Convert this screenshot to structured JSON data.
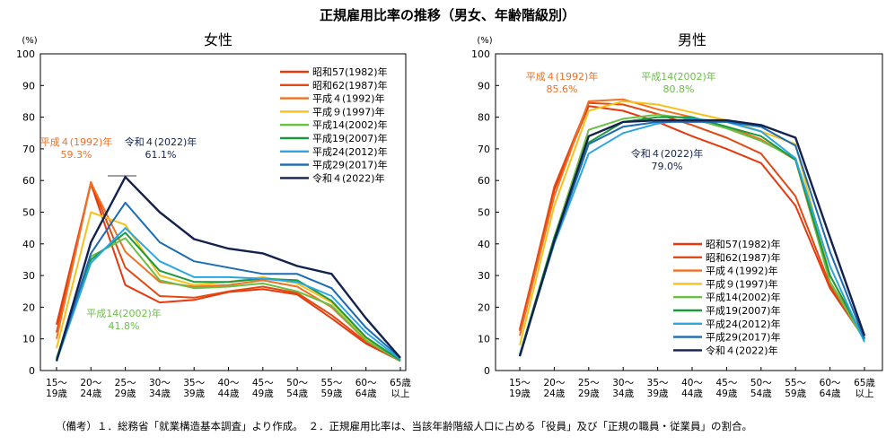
{
  "title": "正規雇用比率の推移（男女、年齢階級別）",
  "footnote": "（備考）１．総務省「就業構造基本調査」より作成。　２．正規雇用比率は、当該年齢階級人口に占める「役員」及び「正規の職員・従業員」の割合。",
  "chart_data": [
    {
      "type": "line",
      "title": "女性",
      "ylabel": "(%)",
      "ylim": [
        0,
        100
      ],
      "yticks": [
        0,
        10,
        20,
        30,
        40,
        50,
        60,
        70,
        80,
        90,
        100
      ],
      "categories": [
        [
          "15～",
          "19歳"
        ],
        [
          "20～",
          "24歳"
        ],
        [
          "25～",
          "29歳"
        ],
        [
          "30～",
          "34歳"
        ],
        [
          "35～",
          "39歳"
        ],
        [
          "40～",
          "44歳"
        ],
        [
          "45～",
          "49歳"
        ],
        [
          "50～",
          "54歳"
        ],
        [
          "55～",
          "59歳"
        ],
        [
          "60～",
          "64歳"
        ],
        [
          "65歳",
          "以上"
        ]
      ],
      "legend_position": "top-right",
      "series": [
        {
          "name": "昭和57(1982)年",
          "color": "#e8380d",
          "values": [
            14.5,
            59.0,
            27.0,
            21.5,
            22.3,
            24.8,
            25.7,
            24.0,
            16.5,
            8.5,
            3.0
          ]
        },
        {
          "name": "昭和62(1987)年",
          "color": "#e24a12",
          "values": [
            12.0,
            59.5,
            32.5,
            23.5,
            23.0,
            25.0,
            26.5,
            24.5,
            17.5,
            9.0,
            3.0
          ]
        },
        {
          "name": "平成４(1992)年",
          "color": "#f07025",
          "values": [
            10.0,
            59.3,
            37.5,
            28.0,
            26.5,
            27.0,
            28.5,
            26.5,
            20.0,
            9.5,
            3.2
          ]
        },
        {
          "name": "平成９(1997)年",
          "color": "#f5c21b",
          "values": [
            7.0,
            50.0,
            46.0,
            30.0,
            27.0,
            28.0,
            29.5,
            27.5,
            21.5,
            10.0,
            3.3
          ]
        },
        {
          "name": "平成14(2002)年",
          "color": "#6abf45",
          "values": [
            4.0,
            36.0,
            41.8,
            28.5,
            26.0,
            26.5,
            27.5,
            25.0,
            20.5,
            9.5,
            3.0
          ]
        },
        {
          "name": "平成19(2007)年",
          "color": "#1a9a3c",
          "values": [
            3.5,
            35.0,
            43.5,
            31.5,
            28.0,
            28.0,
            29.0,
            28.5,
            22.0,
            10.5,
            3.2
          ]
        },
        {
          "name": "平成24(2012)年",
          "color": "#2aa6e0",
          "values": [
            3.0,
            34.0,
            45.0,
            34.5,
            29.5,
            29.5,
            29.0,
            28.0,
            23.5,
            12.0,
            3.5
          ]
        },
        {
          "name": "平成29(2017)年",
          "color": "#1c6bb5",
          "values": [
            3.0,
            37.0,
            53.0,
            40.5,
            34.5,
            32.5,
            30.5,
            30.5,
            26.0,
            13.5,
            4.0
          ]
        },
        {
          "name": "令和４(2022)年",
          "color": "#12224d",
          "values": [
            3.0,
            40.5,
            61.1,
            50.0,
            41.5,
            38.5,
            37.0,
            33.0,
            30.5,
            16.5,
            4.0
          ]
        }
      ],
      "annotations": [
        {
          "label": "平成４(1992)年",
          "value": "59.3%",
          "color": "#f07025"
        },
        {
          "label": "令和４(2022)年",
          "value": "61.1%",
          "color": "#12224d"
        },
        {
          "label": "平成14(2002)年",
          "value": "41.8%",
          "color": "#6abf45"
        }
      ]
    },
    {
      "type": "line",
      "title": "男性",
      "ylabel": "(%)",
      "ylim": [
        0,
        100
      ],
      "yticks": [
        0,
        10,
        20,
        30,
        40,
        50,
        60,
        70,
        80,
        90,
        100
      ],
      "categories": [
        [
          "15～",
          "19歳"
        ],
        [
          "20～",
          "24歳"
        ],
        [
          "25～",
          "29歳"
        ],
        [
          "30～",
          "34歳"
        ],
        [
          "35～",
          "39歳"
        ],
        [
          "40～",
          "44歳"
        ],
        [
          "45～",
          "49歳"
        ],
        [
          "50～",
          "54歳"
        ],
        [
          "55～",
          "59歳"
        ],
        [
          "60～",
          "64歳"
        ],
        [
          "65歳",
          "以上"
        ]
      ],
      "legend_position": "bottom-right",
      "series": [
        {
          "name": "昭和57(1982)年",
          "color": "#e8380d",
          "values": [
            13.0,
            57.0,
            83.5,
            82.0,
            78.5,
            74.0,
            70.0,
            65.5,
            52.0,
            26.0,
            10.0
          ]
        },
        {
          "name": "昭和62(1987)年",
          "color": "#e24a12",
          "values": [
            12.5,
            58.0,
            84.5,
            84.0,
            81.0,
            77.5,
            73.5,
            68.5,
            55.0,
            27.0,
            10.5
          ]
        },
        {
          "name": "平成４(1992)年",
          "color": "#f07025",
          "values": [
            11.0,
            55.0,
            85.0,
            85.6,
            82.5,
            80.0,
            77.0,
            73.0,
            66.5,
            28.0,
            10.5
          ]
        },
        {
          "name": "平成９(1997)年",
          "color": "#f5c21b",
          "values": [
            8.0,
            52.0,
            82.0,
            85.0,
            84.0,
            81.5,
            79.0,
            75.5,
            71.5,
            30.0,
            10.5
          ]
        },
        {
          "name": "平成14(2002)年",
          "color": "#6abf45",
          "values": [
            5.0,
            42.0,
            76.0,
            79.5,
            80.8,
            79.5,
            76.5,
            72.5,
            67.0,
            28.0,
            9.5
          ]
        },
        {
          "name": "平成19(2007)年",
          "color": "#1a9a3c",
          "values": [
            5.0,
            42.0,
            72.0,
            78.5,
            80.0,
            80.0,
            77.0,
            74.0,
            66.5,
            30.0,
            10.0
          ]
        },
        {
          "name": "平成24(2012)年",
          "color": "#2aa6e0",
          "values": [
            5.0,
            40.0,
            68.5,
            75.0,
            78.0,
            79.5,
            78.5,
            75.5,
            67.0,
            33.0,
            9.0
          ]
        },
        {
          "name": "平成29(2017)年",
          "color": "#1c6bb5",
          "values": [
            4.5,
            40.5,
            71.5,
            77.0,
            78.5,
            78.5,
            78.5,
            77.0,
            71.0,
            37.5,
            10.0
          ]
        },
        {
          "name": "令和４(2022)年",
          "color": "#12224d",
          "values": [
            4.5,
            41.0,
            74.0,
            78.5,
            79.0,
            79.0,
            79.0,
            77.5,
            73.5,
            42.0,
            11.0
          ]
        }
      ],
      "annotations": [
        {
          "label": "平成４(1992)年",
          "value": "85.6%",
          "color": "#f07025"
        },
        {
          "label": "平成14(2002)年",
          "value": "80.8%",
          "color": "#6abf45"
        },
        {
          "label": "令和４(2022)年",
          "value": "79.0%",
          "color": "#12224d"
        }
      ]
    }
  ]
}
